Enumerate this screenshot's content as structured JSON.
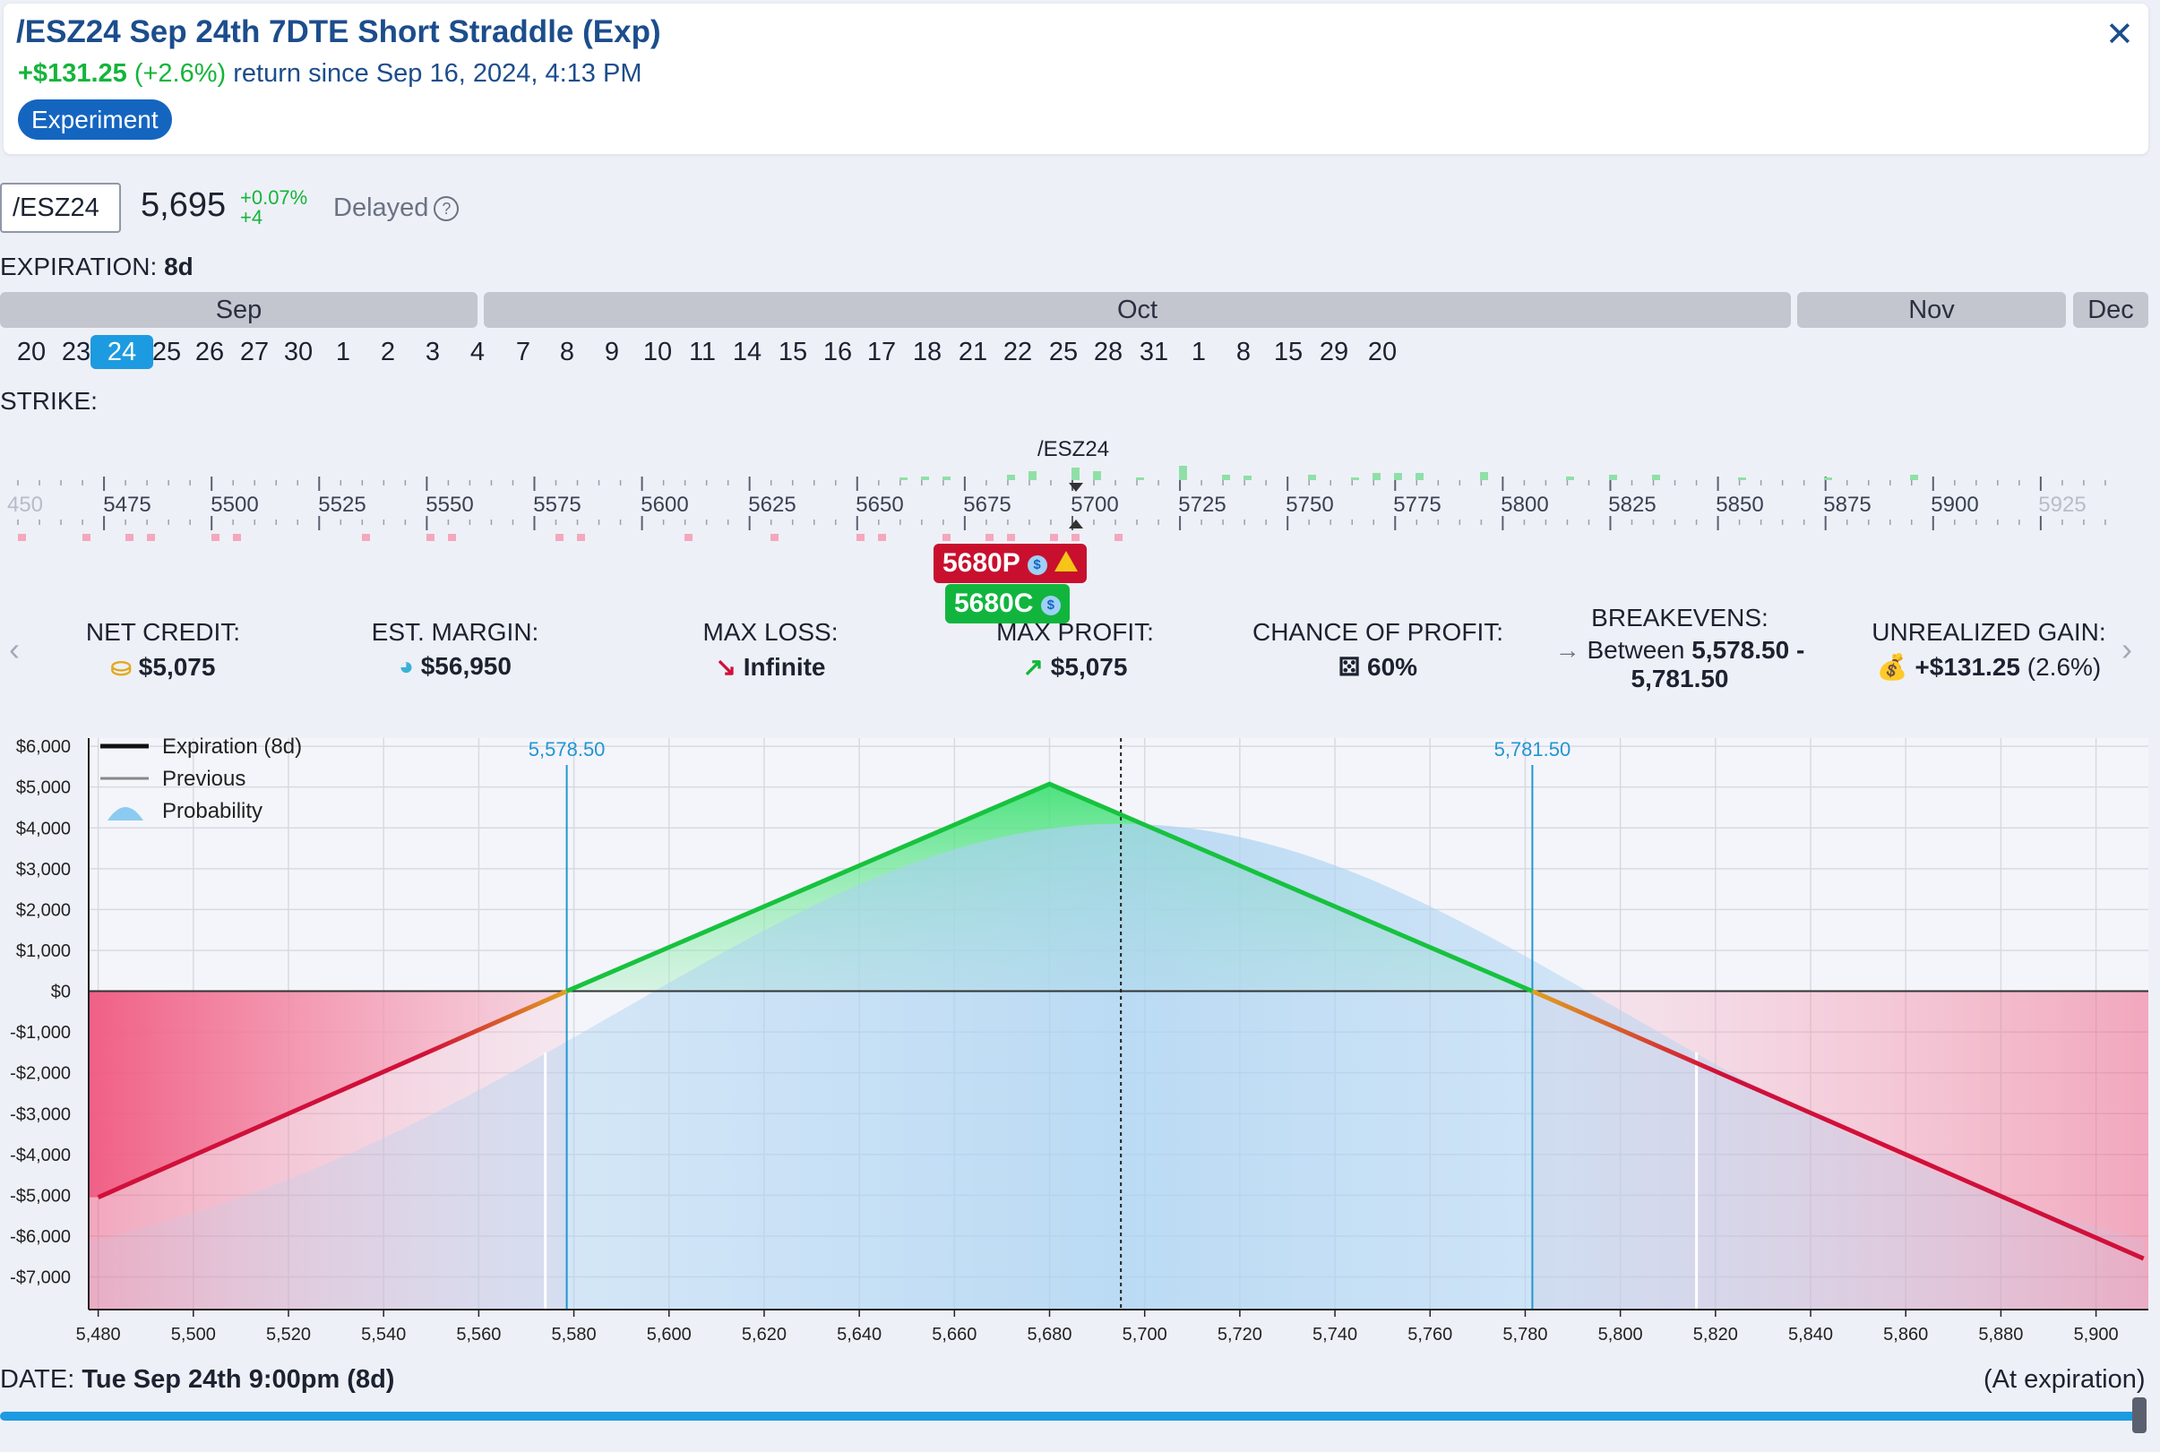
{
  "header": {
    "title": "/ESZ24 Sep 24th 7DTE Short Straddle (Exp)",
    "return_amount": "+$131.25",
    "return_pct": "(+2.6%)",
    "return_text": "return since Sep 16, 2024, 4:13 PM",
    "badge": "Experiment",
    "close_icon": "close-icon"
  },
  "ticker": {
    "symbol": "/ESZ24",
    "price": "5,695",
    "change_pct": "+0.07%",
    "change_abs": "+4",
    "status": "Delayed",
    "help_icon": "?"
  },
  "expiration": {
    "label": "EXPIRATION:",
    "value": "8d",
    "months": [
      "Sep",
      "Oct",
      "Nov",
      "Dec"
    ],
    "days": [
      "20",
      "23",
      "24",
      "25",
      "26",
      "27",
      "30",
      "1",
      "2",
      "3",
      "4",
      "7",
      "8",
      "9",
      "10",
      "11",
      "14",
      "15",
      "16",
      "17",
      "18",
      "21",
      "22",
      "25",
      "28",
      "31",
      "1",
      "8",
      "15",
      "29",
      "20"
    ],
    "selected_day": "24"
  },
  "strike": {
    "label": "STRIKE:",
    "underlying_label": "/ESZ24",
    "ticks": [
      "450",
      "5475",
      "5500",
      "5525",
      "5550",
      "5575",
      "5600",
      "5625",
      "5650",
      "5675",
      "5700",
      "5725",
      "5750",
      "5775",
      "5800",
      "5825",
      "5850",
      "5875",
      "5900",
      "5925"
    ],
    "put_leg": "5680P",
    "call_leg": "5680C",
    "dollar_icon": "$"
  },
  "stats": [
    {
      "title": "NET CREDIT:",
      "value": "$5,075",
      "icon": "coins-icon"
    },
    {
      "title": "EST. MARGIN:",
      "value": "$56,950",
      "icon": "pie-icon"
    },
    {
      "title": "MAX LOSS:",
      "value": "Infinite",
      "icon": "arrow-down-icon"
    },
    {
      "title": "MAX PROFIT:",
      "value": "$5,075",
      "icon": "arrow-up-icon"
    },
    {
      "title": "CHANCE OF PROFIT:",
      "value": "60%",
      "icon": "dice-icon"
    },
    {
      "title": "BREAKEVENS:",
      "value_prefix": "Between",
      "value": "5,578.50 -",
      "value2": "5,781.50",
      "icon": "arrow-right-icon"
    },
    {
      "title": "UNREALIZED GAIN:",
      "value": "+$131.25",
      "value_extra": "(2.6%)",
      "icon": "money-bag-icon"
    }
  ],
  "colors": {
    "profit": "#13b53a",
    "loss": "#d0103a",
    "probability": "#a9d2f2",
    "accent": "#1d9be0",
    "breakeven_line": "#2196d3"
  },
  "chart_data": {
    "type": "line",
    "x": [
      5480,
      5578.5,
      5680,
      5781.5,
      5910
    ],
    "series": [
      {
        "name": "Expiration (8d)",
        "values": [
          -5050,
          0,
          5075,
          0,
          -6550
        ]
      }
    ],
    "legend": [
      "Expiration (8d)",
      "Previous",
      "Probability"
    ],
    "legend_position": "top-left",
    "xlim": [
      5478,
      5911
    ],
    "ylim": [
      -7800,
      6200
    ],
    "x_ticks": [
      5480,
      5500,
      5520,
      5540,
      5560,
      5580,
      5600,
      5620,
      5640,
      5660,
      5680,
      5700,
      5720,
      5740,
      5760,
      5780,
      5800,
      5820,
      5840,
      5860,
      5880,
      5900
    ],
    "x_tick_labels": [
      "5,480",
      "5,500",
      "5,520",
      "5,540",
      "5,560",
      "5,580",
      "5,600",
      "5,620",
      "5,640",
      "5,660",
      "5,680",
      "5,700",
      "5,720",
      "5,740",
      "5,760",
      "5,780",
      "5,800",
      "5,820",
      "5,840",
      "5,860",
      "5,880",
      "5,900"
    ],
    "y_ticks": [
      6000,
      5000,
      4000,
      3000,
      2000,
      1000,
      0,
      -1000,
      -2000,
      -3000,
      -4000,
      -5000,
      -6000,
      -7000
    ],
    "y_tick_labels": [
      "$6,000",
      "$5,000",
      "$4,000",
      "$3,000",
      "$2,000",
      "$1,000",
      "$0",
      "-$1,000",
      "-$2,000",
      "-$3,000",
      "-$4,000",
      "-$5,000",
      "-$6,000",
      "-$7,000"
    ],
    "breakevens": [
      5578.5,
      5781.5
    ],
    "breakeven_labels": [
      "5,578.50",
      "5,781.50"
    ],
    "current_price": 5695,
    "probability_center": 5695,
    "probability_peak": 4100,
    "grid": true
  },
  "date_bar": {
    "label": "DATE:",
    "value": "Tue Sep 24th 9:00pm (8d)",
    "right_label": "(At expiration)"
  }
}
